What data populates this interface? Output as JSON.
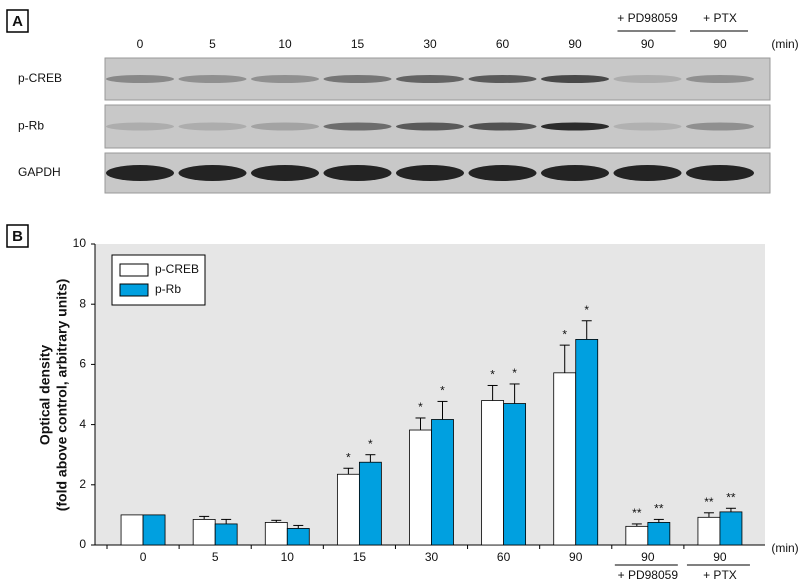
{
  "panel_a": {
    "label": "A",
    "lanes": [
      "0",
      "5",
      "10",
      "15",
      "30",
      "60",
      "90",
      "90",
      "90"
    ],
    "treatments": [
      null,
      null,
      null,
      null,
      null,
      null,
      null,
      "+ PD98059",
      "+ PTX"
    ],
    "unit": "(min)",
    "rows": [
      "p-CREB",
      "p-Rb",
      "GAPDH"
    ]
  },
  "chart_data": {
    "type": "bar",
    "panel_label": "B",
    "y_label": [
      "Optical density",
      "(fold above control, arbitrary units)"
    ],
    "x_unit": "(min)",
    "categories": [
      "0",
      "5",
      "10",
      "15",
      "30",
      "60",
      "90",
      "90",
      "90"
    ],
    "category_sublabels": [
      null,
      null,
      null,
      null,
      null,
      null,
      null,
      "+ PD98059",
      "+ PTX"
    ],
    "series": [
      {
        "name": "p-CREB",
        "color": "#ffffff",
        "values": [
          1.0,
          0.85,
          0.75,
          2.35,
          3.82,
          4.8,
          5.72,
          0.62,
          0.92
        ],
        "errors": [
          0,
          0.1,
          0.07,
          0.2,
          0.4,
          0.5,
          0.92,
          0.08,
          0.15
        ],
        "markers": [
          null,
          null,
          null,
          "*",
          "*",
          "*",
          "*",
          "**",
          "**"
        ]
      },
      {
        "name": "p-Rb",
        "color": "#00a0e0",
        "values": [
          1.0,
          0.7,
          0.55,
          2.75,
          4.17,
          4.7,
          6.83,
          0.75,
          1.1
        ],
        "errors": [
          0,
          0.15,
          0.1,
          0.25,
          0.6,
          0.65,
          0.62,
          0.1,
          0.12
        ],
        "markers": [
          null,
          null,
          null,
          "*",
          "*",
          "*",
          "*",
          "**",
          "**"
        ]
      }
    ],
    "ylim": [
      0,
      10
    ],
    "yticks": [
      0,
      2,
      4,
      6,
      8,
      10
    ],
    "plot_background": "#e6e6e6"
  }
}
